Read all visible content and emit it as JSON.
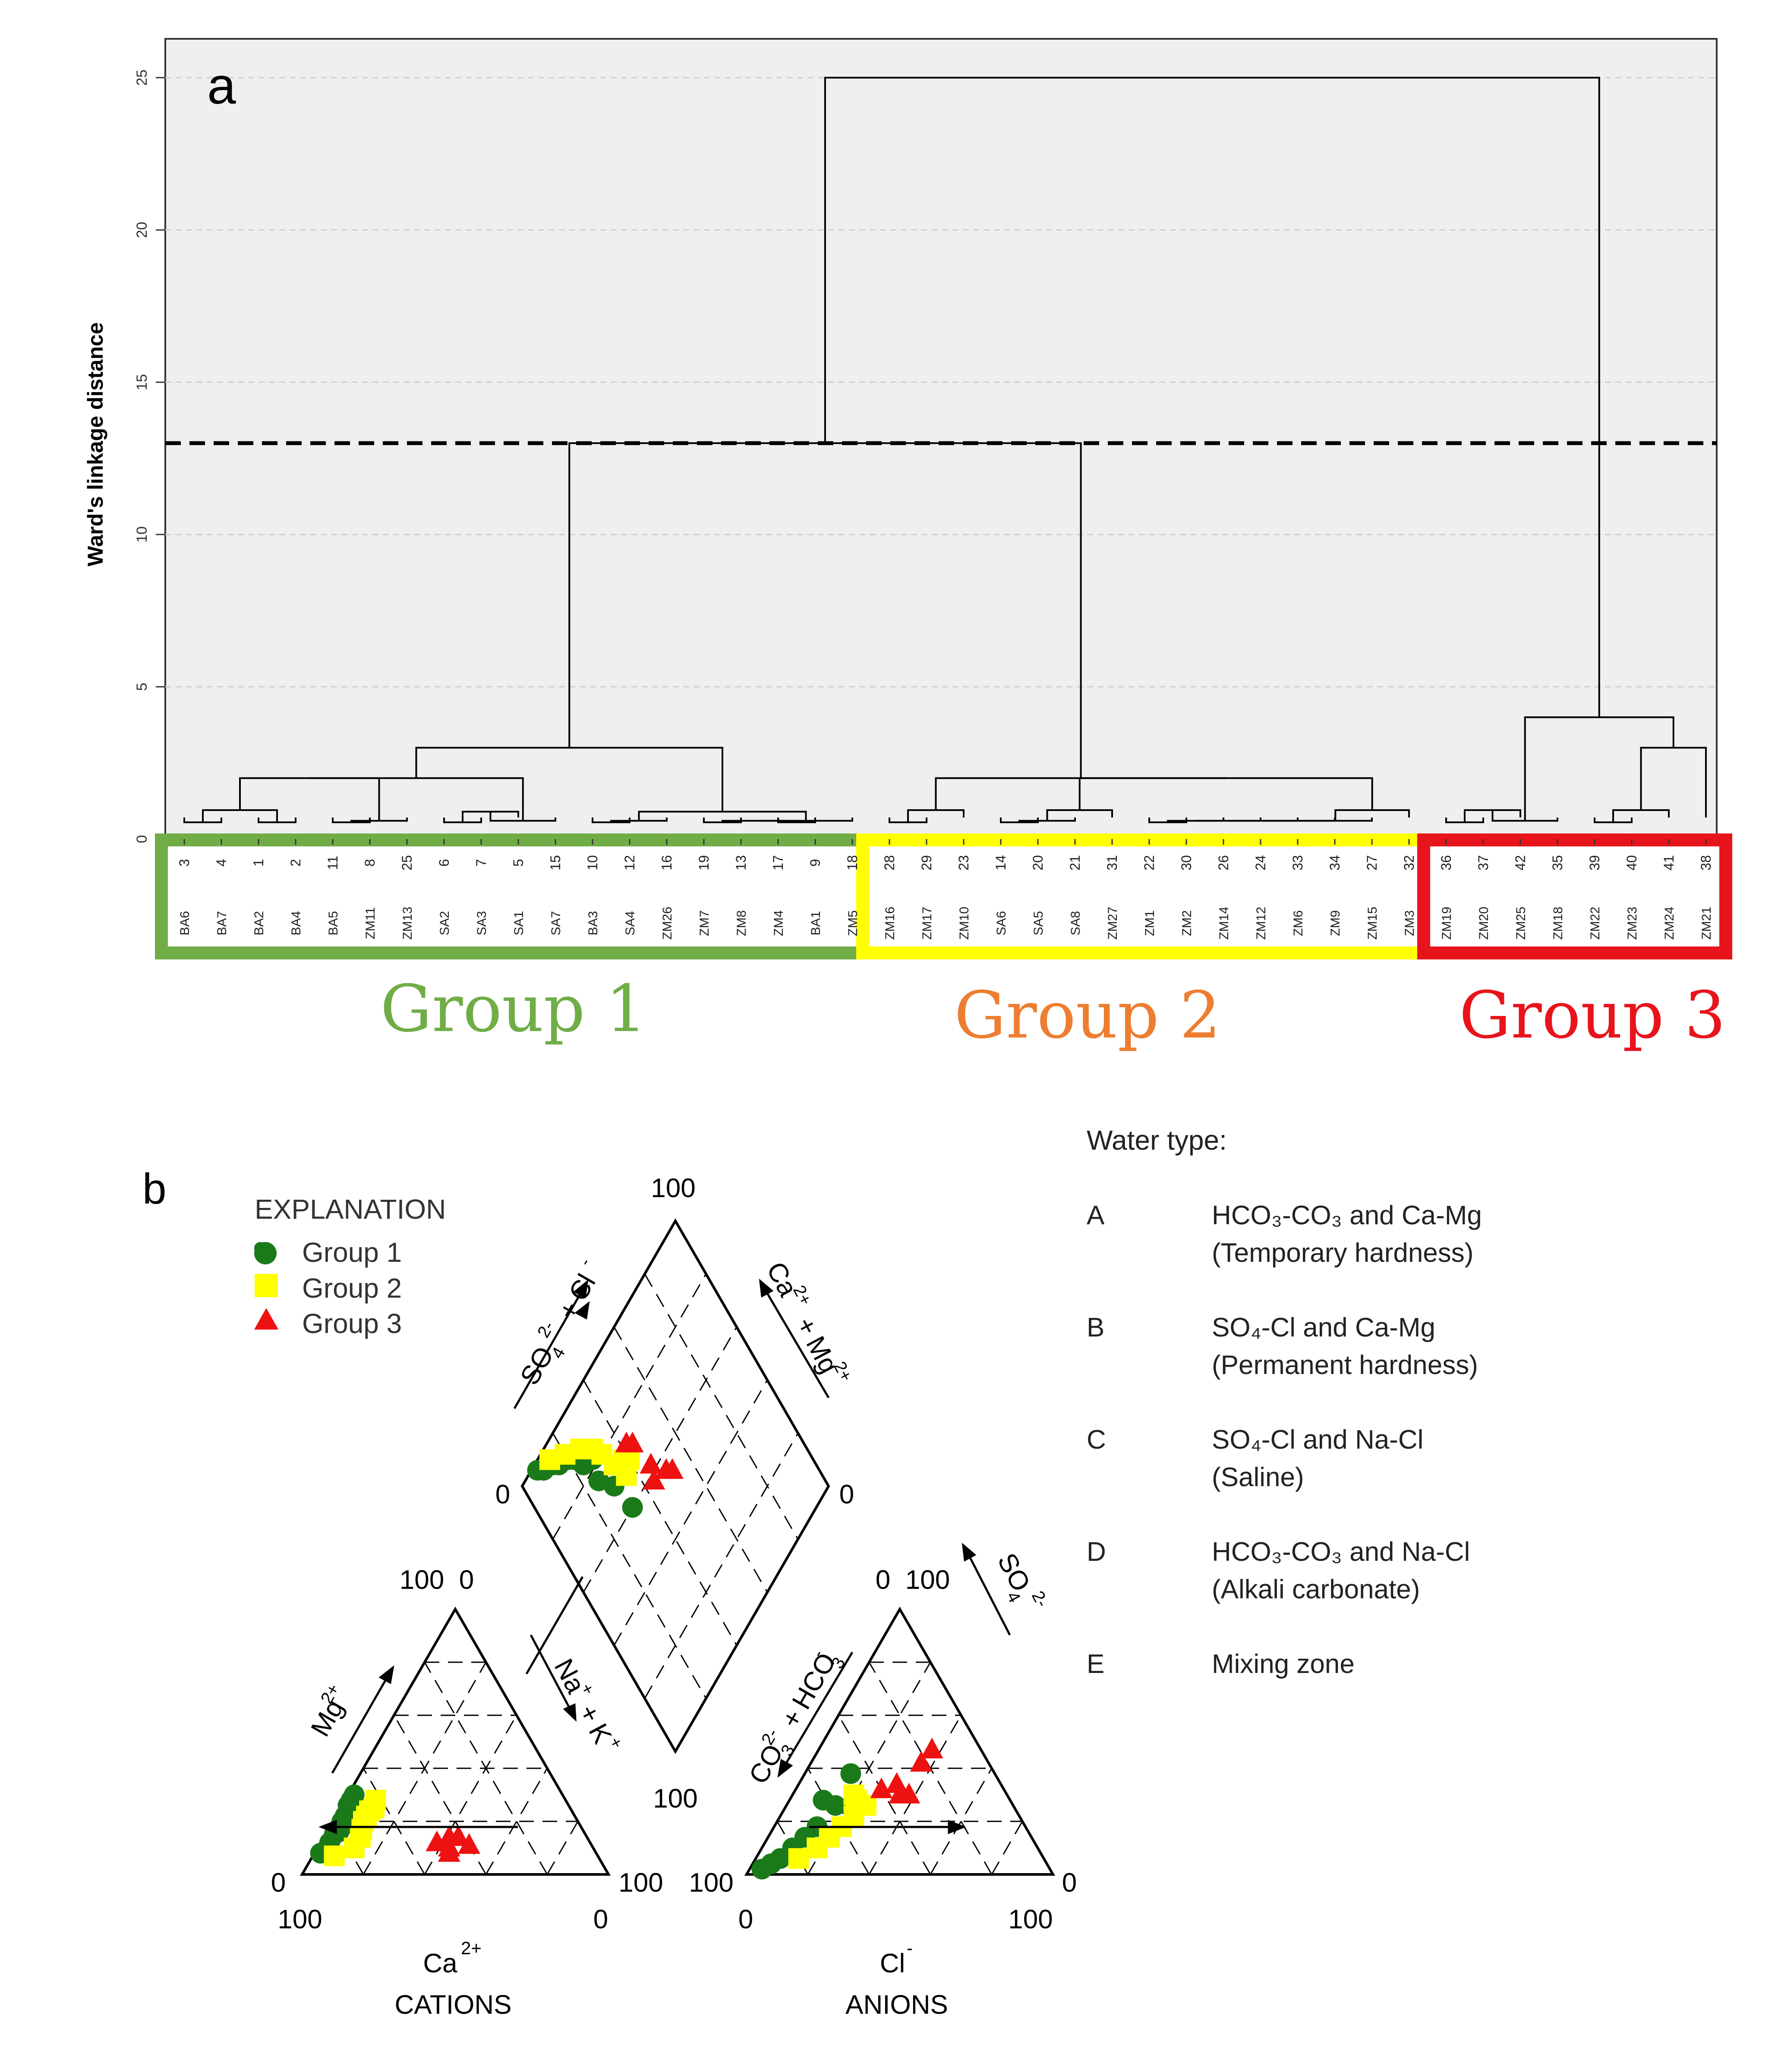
{
  "chart_data": [
    {
      "type": "dendrogram",
      "panel_label": "a",
      "ylabel": "Ward's linkage distance",
      "ylim": [
        0,
        26
      ],
      "yticks": [
        0,
        5,
        10,
        15,
        20,
        25
      ],
      "cut_line": 13,
      "leaves": [
        {
          "num": "3",
          "code": "BA6",
          "group": 1
        },
        {
          "num": "4",
          "code": "BA7",
          "group": 1
        },
        {
          "num": "1",
          "code": "BA2",
          "group": 1
        },
        {
          "num": "2",
          "code": "BA4",
          "group": 1
        },
        {
          "num": "11",
          "code": "BA5",
          "group": 1
        },
        {
          "num": "8",
          "code": "ZM11",
          "group": 1
        },
        {
          "num": "25",
          "code": "ZM13",
          "group": 1
        },
        {
          "num": "6",
          "code": "SA2",
          "group": 1
        },
        {
          "num": "7",
          "code": "SA3",
          "group": 1
        },
        {
          "num": "5",
          "code": "SA1",
          "group": 1
        },
        {
          "num": "15",
          "code": "SA7",
          "group": 1
        },
        {
          "num": "10",
          "code": "BA3",
          "group": 1
        },
        {
          "num": "12",
          "code": "SA4",
          "group": 1
        },
        {
          "num": "16",
          "code": "ZM26",
          "group": 1
        },
        {
          "num": "19",
          "code": "ZM7",
          "group": 1
        },
        {
          "num": "13",
          "code": "ZM8",
          "group": 1
        },
        {
          "num": "17",
          "code": "ZM4",
          "group": 1
        },
        {
          "num": "9",
          "code": "BA1",
          "group": 1
        },
        {
          "num": "18",
          "code": "ZM5",
          "group": 1
        },
        {
          "num": "28",
          "code": "ZM16",
          "group": 2
        },
        {
          "num": "29",
          "code": "ZM17",
          "group": 2
        },
        {
          "num": "23",
          "code": "ZM10",
          "group": 2
        },
        {
          "num": "14",
          "code": "SA6",
          "group": 2
        },
        {
          "num": "20",
          "code": "SA5",
          "group": 2
        },
        {
          "num": "21",
          "code": "SA8",
          "group": 2
        },
        {
          "num": "31",
          "code": "ZM27",
          "group": 2
        },
        {
          "num": "22",
          "code": "ZM1",
          "group": 2
        },
        {
          "num": "30",
          "code": "ZM2",
          "group": 2
        },
        {
          "num": "26",
          "code": "ZM14",
          "group": 2
        },
        {
          "num": "24",
          "code": "ZM12",
          "group": 2
        },
        {
          "num": "33",
          "code": "ZM6",
          "group": 2
        },
        {
          "num": "34",
          "code": "ZM9",
          "group": 2
        },
        {
          "num": "27",
          "code": "ZM15",
          "group": 2
        },
        {
          "num": "32",
          "code": "ZM3",
          "group": 2
        },
        {
          "num": "36",
          "code": "ZM19",
          "group": 3
        },
        {
          "num": "37",
          "code": "ZM20",
          "group": 3
        },
        {
          "num": "42",
          "code": "ZM25",
          "group": 3
        },
        {
          "num": "35",
          "code": "ZM18",
          "group": 3
        },
        {
          "num": "39",
          "code": "ZM22",
          "group": 3
        },
        {
          "num": "40",
          "code": "ZM23",
          "group": 3
        },
        {
          "num": "41",
          "code": "ZM24",
          "group": 3
        },
        {
          "num": "38",
          "code": "ZM21",
          "group": 3
        }
      ],
      "merges": [
        [
          0,
          1,
          0.55
        ],
        [
          2,
          3,
          0.55
        ],
        [
          -1,
          -2,
          0.95
        ],
        [
          4,
          5,
          0.55
        ],
        [
          -4,
          6,
          0.6
        ],
        [
          -3,
          -5,
          2.0
        ],
        [
          7,
          8,
          0.55
        ],
        [
          -7,
          9,
          0.9
        ],
        [
          -8,
          10,
          0.6
        ],
        [
          -6,
          -9,
          2.0
        ],
        [
          11,
          12,
          0.55
        ],
        [
          -11,
          13,
          0.6
        ],
        [
          14,
          15,
          0.55
        ],
        [
          16,
          17,
          0.55
        ],
        [
          -13,
          -14,
          0.6
        ],
        [
          -15,
          18,
          0.6
        ],
        [
          -12,
          -16,
          0.9
        ],
        [
          -17,
          -10,
          3.0
        ],
        [
          19,
          20,
          0.55
        ],
        [
          -19,
          21,
          0.95
        ],
        [
          22,
          23,
          0.55
        ],
        [
          -21,
          24,
          0.6
        ],
        [
          -22,
          25,
          0.95
        ],
        [
          26,
          27,
          0.55
        ],
        [
          -24,
          28,
          0.6
        ],
        [
          -25,
          29,
          0.6
        ],
        [
          -26,
          30,
          0.6
        ],
        [
          -27,
          31,
          0.6
        ],
        [
          -28,
          32,
          0.6
        ],
        [
          -29,
          33,
          0.95
        ],
        [
          -30,
          -23,
          2.0
        ],
        [
          -20,
          -31,
          2.0
        ],
        [
          -32,
          -18,
          13.0
        ],
        [
          34,
          35,
          0.55
        ],
        [
          -34,
          36,
          0.95
        ],
        [
          -35,
          37,
          0.6
        ],
        [
          38,
          39,
          0.55
        ],
        [
          -37,
          40,
          0.95
        ],
        [
          -38,
          41,
          3.0
        ],
        [
          -36,
          -39,
          4.0
        ],
        [
          -33,
          -40,
          25.0
        ]
      ],
      "groups": [
        {
          "name": "Group 1",
          "color": "#70ad47",
          "box_color": "#70ad47"
        },
        {
          "name": "Group 2",
          "color": "#ed7d31",
          "box_color": "#ffff00"
        },
        {
          "name": "Group 3",
          "color": "#e8141c",
          "box_color": "#e8141c"
        }
      ]
    },
    {
      "type": "piper",
      "panel_label": "b",
      "explanation_title": "EXPLANATION",
      "legend": [
        {
          "name": "Group 1",
          "marker": "circle",
          "color": "#1a7a1a"
        },
        {
          "name": "Group 2",
          "marker": "square",
          "color": "#ffff00"
        },
        {
          "name": "Group 3",
          "marker": "triangle",
          "color": "#ee1111"
        }
      ],
      "labels": {
        "cation_axis_left": "Mg",
        "cation_axis_left_sup": "2+",
        "cation_axis_right": "Na",
        "cation_axis_right_2": "K",
        "cation_axis_bottom": "Ca",
        "cation_axis_bottom_sup": "2+",
        "cations_title": "CATIONS",
        "anion_axis_left_1": "CO",
        "anion_axis_left_2": "HCO",
        "anion_axis_right": "SO",
        "anion_axis_bottom": "Cl",
        "anions_title": "ANIONS",
        "diamond_axis_left_1": "SO",
        "diamond_axis_left_2": "Cl",
        "diamond_axis_right_1": "Ca",
        "diamond_axis_right_2": "Mg"
      },
      "tick_values": {
        "zero": "0",
        "hundred": "100",
        "pair_left": "100  0",
        "pair_right": "0  100"
      },
      "points": {
        "cations": [
          {
            "group": 1,
            "ca": 90,
            "mg": 8
          },
          {
            "group": 1,
            "ca": 85,
            "mg": 12
          },
          {
            "group": 1,
            "ca": 82,
            "mg": 15
          },
          {
            "group": 1,
            "ca": 78,
            "mg": 18
          },
          {
            "group": 1,
            "ca": 75,
            "mg": 22
          },
          {
            "group": 1,
            "ca": 72,
            "mg": 26
          },
          {
            "group": 1,
            "ca": 70,
            "mg": 28
          },
          {
            "group": 1,
            "ca": 68,
            "mg": 30
          },
          {
            "group": 1,
            "ca": 77,
            "mg": 20
          },
          {
            "group": 1,
            "ca": 80,
            "mg": 16
          },
          {
            "group": 2,
            "ca": 86,
            "mg": 7
          },
          {
            "group": 2,
            "ca": 78,
            "mg": 10
          },
          {
            "group": 2,
            "ca": 72,
            "mg": 17
          },
          {
            "group": 2,
            "ca": 68,
            "mg": 22
          },
          {
            "group": 2,
            "ca": 64,
            "mg": 25
          },
          {
            "group": 2,
            "ca": 62,
            "mg": 28
          },
          {
            "group": 2,
            "ca": 70,
            "mg": 20
          },
          {
            "group": 2,
            "ca": 66,
            "mg": 24
          },
          {
            "group": 2,
            "ca": 74,
            "mg": 14
          },
          {
            "group": 3,
            "ca": 50,
            "mg": 12
          },
          {
            "group": 3,
            "ca": 47,
            "mg": 10
          },
          {
            "group": 3,
            "ca": 45,
            "mg": 14
          },
          {
            "group": 3,
            "ca": 42,
            "mg": 14
          },
          {
            "group": 3,
            "ca": 40,
            "mg": 11
          },
          {
            "group": 3,
            "ca": 48,
            "mg": 8
          }
        ],
        "anions": [
          {
            "group": 1,
            "cl": 4,
            "so4": 2
          },
          {
            "group": 1,
            "cl": 6,
            "so4": 4
          },
          {
            "group": 1,
            "cl": 8,
            "so4": 6
          },
          {
            "group": 1,
            "cl": 10,
            "so4": 10
          },
          {
            "group": 1,
            "cl": 12,
            "so4": 14
          },
          {
            "group": 1,
            "cl": 14,
            "so4": 18
          },
          {
            "group": 1,
            "cl": 16,
            "so4": 26
          },
          {
            "group": 1,
            "cl": 15,
            "so4": 38
          },
          {
            "group": 1,
            "cl": 11,
            "so4": 28
          },
          {
            "group": 2,
            "cl": 14,
            "so4": 6
          },
          {
            "group": 2,
            "cl": 18,
            "so4": 10
          },
          {
            "group": 2,
            "cl": 20,
            "so4": 14
          },
          {
            "group": 2,
            "cl": 22,
            "so4": 18
          },
          {
            "group": 2,
            "cl": 24,
            "so4": 22
          },
          {
            "group": 2,
            "cl": 22,
            "so4": 28
          },
          {
            "group": 2,
            "cl": 26,
            "so4": 26
          },
          {
            "group": 2,
            "cl": 20,
            "so4": 30
          },
          {
            "group": 3,
            "cl": 28,
            "so4": 32
          },
          {
            "group": 3,
            "cl": 32,
            "so4": 34
          },
          {
            "group": 3,
            "cl": 35,
            "so4": 30
          },
          {
            "group": 3,
            "cl": 38,
            "so4": 30
          },
          {
            "group": 3,
            "cl": 36,
            "so4": 42
          },
          {
            "group": 3,
            "cl": 37,
            "so4": 47
          }
        ],
        "diamond": [
          {
            "group": 1,
            "x": 8,
            "y": 2
          },
          {
            "group": 1,
            "x": 10,
            "y": 4
          },
          {
            "group": 1,
            "x": 14,
            "y": 6
          },
          {
            "group": 1,
            "x": 16,
            "y": 8
          },
          {
            "group": 1,
            "x": 20,
            "y": 10
          },
          {
            "group": 1,
            "x": 22,
            "y": 12
          },
          {
            "group": 1,
            "x": 24,
            "y": 16
          },
          {
            "group": 1,
            "x": 28,
            "y": 18
          },
          {
            "group": 1,
            "x": 26,
            "y": 24
          },
          {
            "group": 1,
            "x": 30,
            "y": 30
          },
          {
            "group": 1,
            "x": 32,
            "y": 40
          },
          {
            "group": 2,
            "x": 14,
            "y": 4
          },
          {
            "group": 2,
            "x": 20,
            "y": 8
          },
          {
            "group": 2,
            "x": 26,
            "y": 12
          },
          {
            "group": 2,
            "x": 30,
            "y": 16
          },
          {
            "group": 2,
            "x": 32,
            "y": 20
          },
          {
            "group": 2,
            "x": 34,
            "y": 26
          },
          {
            "group": 2,
            "x": 38,
            "y": 28
          },
          {
            "group": 2,
            "x": 36,
            "y": 32
          },
          {
            "group": 2,
            "x": 40,
            "y": 30
          },
          {
            "group": 3,
            "x": 42,
            "y": 26
          },
          {
            "group": 3,
            "x": 44,
            "y": 28
          },
          {
            "group": 3,
            "x": 46,
            "y": 38
          },
          {
            "group": 3,
            "x": 44,
            "y": 42
          },
          {
            "group": 3,
            "x": 50,
            "y": 44
          },
          {
            "group": 3,
            "x": 52,
            "y": 46
          }
        ]
      }
    }
  ],
  "water_types": {
    "title": "Water type:",
    "items": [
      {
        "letter": "A",
        "line1": "HCO₃-CO₃ and Ca-Mg",
        "line2": "(Temporary hardness)"
      },
      {
        "letter": "B",
        "line1": "SO₄-Cl and Ca-Mg",
        "line2": "(Permanent hardness)"
      },
      {
        "letter": "C",
        "line1": "SO₄-Cl and Na-Cl",
        "line2": "(Saline)"
      },
      {
        "letter": "D",
        "line1": "HCO₃-CO₃ and Na-Cl",
        "line2": "(Alkali carbonate)"
      },
      {
        "letter": "E",
        "line1": "Mixing zone",
        "line2": ""
      }
    ]
  }
}
